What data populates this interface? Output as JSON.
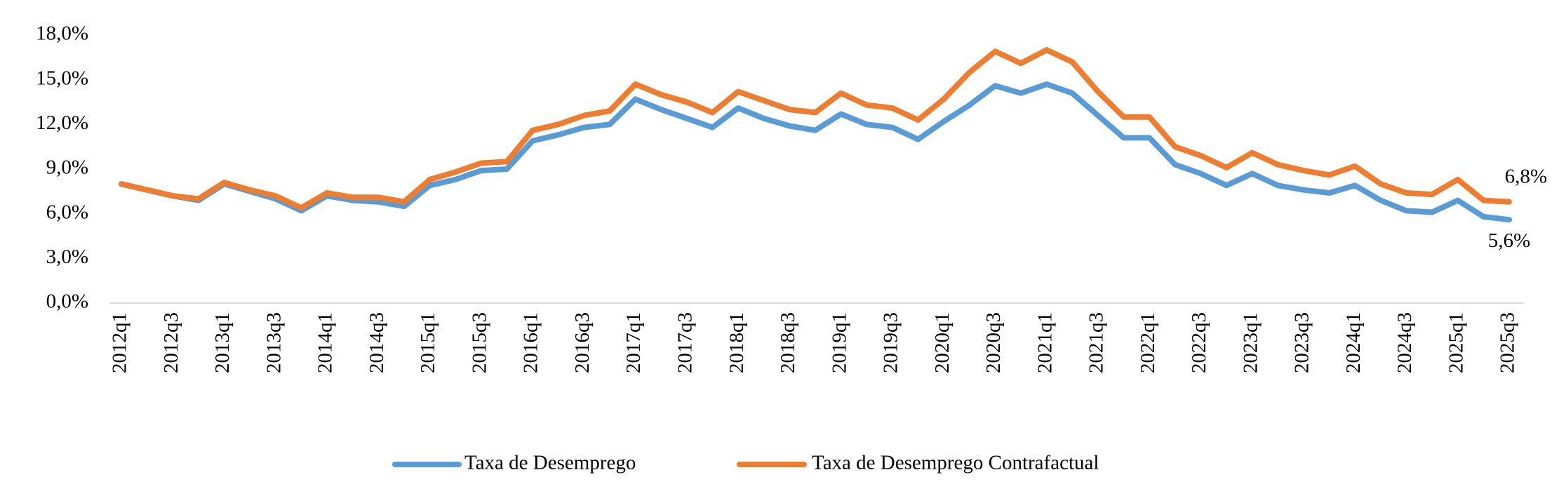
{
  "chart_data": {
    "type": "line",
    "categories": [
      "2012q1",
      null,
      "2012q3",
      null,
      "2013q1",
      null,
      "2013q3",
      null,
      "2014q1",
      null,
      "2014q3",
      null,
      "2015q1",
      null,
      "2015q3",
      null,
      "2016q1",
      null,
      "2016q3",
      null,
      "2017q1",
      null,
      "2017q3",
      null,
      "2018q1",
      null,
      "2018q3",
      null,
      "2019q1",
      null,
      "2019q3",
      null,
      "2020q1",
      null,
      "2020q3",
      null,
      "2021q1",
      null,
      "2021q3",
      null,
      "2022q1",
      null,
      "2022q3",
      null,
      "2023q1",
      null,
      "2023q3",
      null,
      "2024q1",
      null,
      "2024q3",
      null,
      "2025q1",
      null,
      "2025q3"
    ],
    "series": [
      {
        "name": "Taxa de Desemprego",
        "color": "#5b9bd5",
        "values": [
          8.0,
          7.6,
          7.2,
          6.9,
          8.0,
          7.5,
          7.0,
          6.2,
          7.2,
          6.9,
          6.8,
          6.5,
          7.9,
          8.3,
          8.9,
          9.0,
          10.9,
          11.3,
          11.8,
          12.0,
          13.7,
          13.0,
          12.4,
          11.8,
          13.1,
          12.4,
          11.9,
          11.6,
          12.7,
          12.0,
          11.8,
          11.0,
          12.2,
          13.3,
          14.6,
          14.1,
          14.7,
          14.1,
          12.6,
          11.1,
          11.1,
          9.3,
          8.7,
          7.9,
          8.7,
          7.9,
          7.6,
          7.4,
          7.9,
          6.9,
          6.2,
          6.1,
          6.9,
          5.8,
          5.6
        ],
        "value_labels": [
          null,
          null,
          null,
          null,
          null,
          null,
          null,
          null,
          null,
          null,
          null,
          null,
          null,
          null,
          null,
          null,
          null,
          null,
          null,
          null,
          null,
          null,
          null,
          null,
          null,
          null,
          null,
          null,
          null,
          null,
          null,
          null,
          null,
          null,
          null,
          null,
          null,
          null,
          null,
          null,
          null,
          null,
          null,
          null,
          null,
          null,
          null,
          null,
          null,
          null,
          null,
          null,
          null,
          null,
          "5,6%"
        ]
      },
      {
        "name": "Taxa de Desemprego Contrafactual",
        "color": "#ed7d31",
        "values": [
          8.0,
          7.6,
          7.2,
          7.0,
          8.1,
          7.6,
          7.2,
          6.4,
          7.4,
          7.1,
          7.1,
          6.8,
          8.3,
          8.8,
          9.4,
          9.5,
          11.6,
          12.0,
          12.6,
          12.9,
          14.7,
          14.0,
          13.5,
          12.8,
          14.2,
          13.6,
          13.0,
          12.8,
          14.1,
          13.3,
          13.1,
          12.3,
          13.7,
          15.5,
          16.9,
          16.1,
          17.0,
          16.2,
          14.2,
          12.5,
          12.5,
          10.5,
          9.9,
          9.1,
          10.1,
          9.3,
          8.9,
          8.6,
          9.2,
          8.0,
          7.4,
          7.3,
          8.3,
          6.9,
          6.8
        ],
        "value_labels": [
          null,
          null,
          null,
          null,
          null,
          null,
          null,
          null,
          null,
          null,
          null,
          null,
          null,
          null,
          null,
          null,
          null,
          null,
          null,
          null,
          null,
          null,
          null,
          null,
          null,
          null,
          null,
          null,
          null,
          null,
          null,
          null,
          null,
          null,
          null,
          null,
          null,
          null,
          null,
          null,
          null,
          null,
          null,
          null,
          null,
          null,
          null,
          null,
          null,
          null,
          null,
          null,
          null,
          null,
          "6,8%"
        ]
      }
    ],
    "ylim": [
      0,
      18
    ],
    "yticks": [
      {
        "value": 0,
        "label": "0,0%"
      },
      {
        "value": 3,
        "label": "3,0%"
      },
      {
        "value": 6,
        "label": "6,0%"
      },
      {
        "value": 9,
        "label": "9,0%"
      },
      {
        "value": 12,
        "label": "12,0%"
      },
      {
        "value": 15,
        "label": "15,0%"
      },
      {
        "value": 18,
        "label": "18,0%"
      }
    ],
    "legend": "bottom"
  }
}
